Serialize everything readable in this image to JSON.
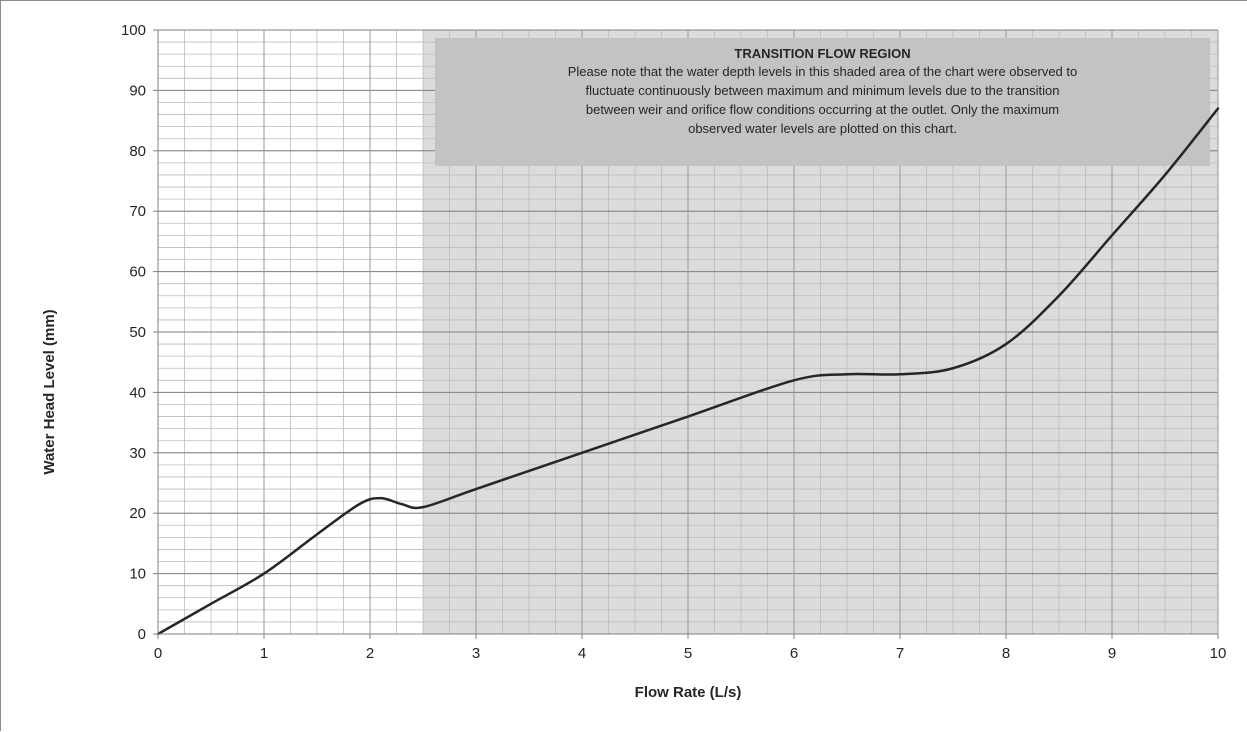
{
  "chart_data": {
    "type": "line",
    "title": "",
    "xlabel": "Flow Rate (L/s)",
    "ylabel": "Water Head Level (mm)",
    "xlim": [
      0,
      10
    ],
    "ylim": [
      0,
      100
    ],
    "x_ticks": [
      "0",
      "1",
      "2",
      "3",
      "4",
      "5",
      "6",
      "7",
      "8",
      "9",
      "10"
    ],
    "y_ticks": [
      "0",
      "10",
      "20",
      "30",
      "40",
      "50",
      "60",
      "70",
      "80",
      "90",
      "100"
    ],
    "grid": "major and minor",
    "legend": "none",
    "series": [
      {
        "color": "#262626",
        "x": [
          0,
          0.5,
          1.0,
          1.5,
          1.9,
          2.1,
          2.3,
          2.5,
          3.0,
          4.0,
          5.0,
          6.0,
          6.5,
          7.0,
          7.5,
          8.0,
          8.5,
          9.0,
          9.5,
          10.0
        ],
        "y": [
          0,
          5,
          10,
          16.5,
          21.5,
          22.5,
          21.5,
          21,
          24,
          30,
          36,
          42,
          43,
          43,
          44,
          48,
          56,
          66,
          76,
          87
        ]
      }
    ],
    "shaded_region": {
      "x_start": 2.5,
      "x_end": 10,
      "color": "#dcdcdc"
    },
    "annotation": {
      "title": "TRANSITION FLOW REGION",
      "lines": [
        "Please note that the water depth levels in this shaded area of the chart were observed to",
        "fluctuate continuously between maximum and minimum levels due to the transition",
        "between weir and orifice flow conditions occurring at the outlet. Only the maximum",
        "observed  water levels are plotted on this chart."
      ],
      "box_color": "#c3c3c3"
    }
  }
}
